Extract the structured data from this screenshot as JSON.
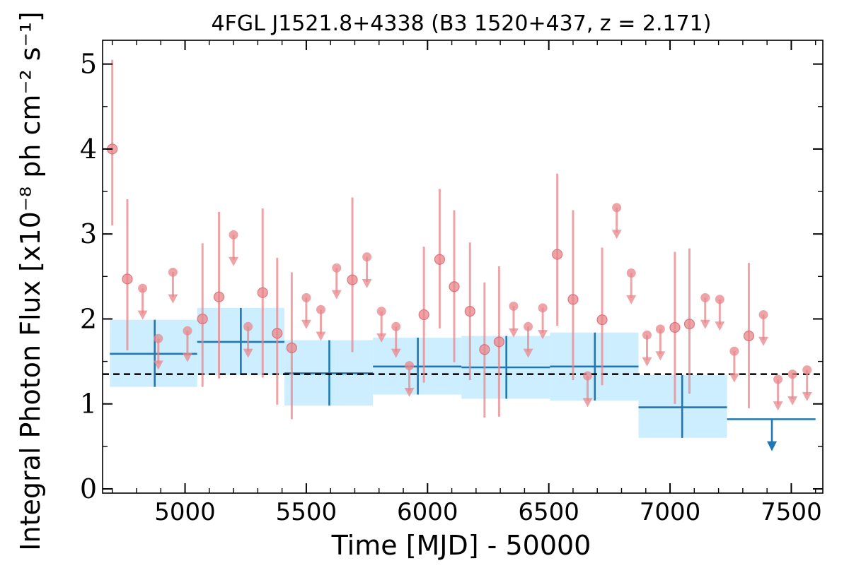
{
  "chart_data": {
    "type": "scatter",
    "title": "4FGL J1521.8+4338 (B3 1520+437, z = 2.171)",
    "xlabel": "Time [MJD] - 50000",
    "ylabel": "Integral Photon Flux [x10⁻⁸ ph cm⁻² s⁻¹]",
    "xlim": [
      4660,
      7630
    ],
    "ylim": [
      -0.05,
      5.28
    ],
    "xticks": [
      5000,
      5500,
      6000,
      6500,
      7000,
      7500
    ],
    "yticks": [
      0,
      1,
      2,
      3,
      4,
      5
    ],
    "grid": false,
    "legend": "none",
    "average_flux": 1.35,
    "colors": {
      "monthly": "#e8868a",
      "yearly": "#1f77b4",
      "band": "#cdeeff",
      "average_line": "#000000"
    },
    "series": [
      {
        "bin": "monthly",
        "detections": [
          {
            "x": 4700,
            "y": 4.0,
            "lo": 3.1,
            "hi": 5.05
          },
          {
            "x": 4762,
            "y": 2.47,
            "lo": 1.63,
            "hi": 3.41
          },
          {
            "x": 5072,
            "y": 2.0,
            "lo": 1.2,
            "hi": 2.89
          },
          {
            "x": 5140,
            "y": 2.26,
            "lo": 1.3,
            "hi": 3.26
          },
          {
            "x": 5320,
            "y": 2.31,
            "lo": 1.31,
            "hi": 3.3
          },
          {
            "x": 5380,
            "y": 1.83,
            "lo": 0.99,
            "hi": 2.72
          },
          {
            "x": 5440,
            "y": 1.66,
            "lo": 0.82,
            "hi": 2.55
          },
          {
            "x": 5690,
            "y": 2.46,
            "lo": 1.61,
            "hi": 3.43
          },
          {
            "x": 5985,
            "y": 2.05,
            "lo": 1.25,
            "hi": 2.85
          },
          {
            "x": 6050,
            "y": 2.7,
            "lo": 1.89,
            "hi": 3.53
          },
          {
            "x": 6110,
            "y": 2.38,
            "lo": 1.49,
            "hi": 3.28
          },
          {
            "x": 6175,
            "y": 2.09,
            "lo": 1.28,
            "hi": 2.9
          },
          {
            "x": 6235,
            "y": 1.64,
            "lo": 0.84,
            "hi": 2.43
          },
          {
            "x": 6295,
            "y": 1.73,
            "lo": 0.85,
            "hi": 2.62
          },
          {
            "x": 6535,
            "y": 2.76,
            "lo": 1.92,
            "hi": 3.71
          },
          {
            "x": 6600,
            "y": 2.23,
            "lo": 1.28,
            "hi": 3.28
          },
          {
            "x": 6720,
            "y": 1.99,
            "lo": 1.22,
            "hi": 2.84
          },
          {
            "x": 7020,
            "y": 1.9,
            "lo": 1.0,
            "hi": 2.79
          },
          {
            "x": 7080,
            "y": 1.94,
            "lo": 1.12,
            "hi": 2.83
          },
          {
            "x": 7325,
            "y": 1.8,
            "lo": 0.95,
            "hi": 2.66
          }
        ],
        "upper_limits": [
          {
            "x": 4825,
            "y": 2.36
          },
          {
            "x": 4890,
            "y": 1.77
          },
          {
            "x": 4950,
            "y": 2.55
          },
          {
            "x": 5010,
            "y": 1.86
          },
          {
            "x": 5200,
            "y": 2.99
          },
          {
            "x": 5260,
            "y": 1.91
          },
          {
            "x": 5500,
            "y": 2.25
          },
          {
            "x": 5560,
            "y": 2.11
          },
          {
            "x": 5625,
            "y": 2.6
          },
          {
            "x": 5750,
            "y": 2.73
          },
          {
            "x": 5810,
            "y": 2.09
          },
          {
            "x": 5870,
            "y": 1.91
          },
          {
            "x": 5925,
            "y": 1.45
          },
          {
            "x": 6355,
            "y": 2.15
          },
          {
            "x": 6415,
            "y": 1.91
          },
          {
            "x": 6475,
            "y": 2.13
          },
          {
            "x": 6660,
            "y": 1.33
          },
          {
            "x": 6780,
            "y": 3.31
          },
          {
            "x": 6840,
            "y": 2.54
          },
          {
            "x": 6905,
            "y": 1.81
          },
          {
            "x": 6960,
            "y": 1.88
          },
          {
            "x": 7145,
            "y": 2.25
          },
          {
            "x": 7205,
            "y": 2.23
          },
          {
            "x": 7265,
            "y": 1.62
          },
          {
            "x": 7385,
            "y": 2.05
          },
          {
            "x": 7445,
            "y": 1.29
          },
          {
            "x": 7505,
            "y": 1.35
          },
          {
            "x": 7565,
            "y": 1.4
          }
        ]
      },
      {
        "bin": "yearly",
        "detections": [
          {
            "x_start": 4690,
            "x_end": 5050,
            "x": 4875,
            "y": 1.59,
            "lo": 1.2,
            "hi": 1.99
          },
          {
            "x_start": 5050,
            "x_end": 5410,
            "x": 5230,
            "y": 1.73,
            "lo": 1.34,
            "hi": 2.13
          },
          {
            "x_start": 5410,
            "x_end": 5775,
            "x": 5595,
            "y": 1.36,
            "lo": 0.98,
            "hi": 1.75
          },
          {
            "x_start": 5775,
            "x_end": 6140,
            "x": 5960,
            "y": 1.44,
            "lo": 1.11,
            "hi": 1.78
          },
          {
            "x_start": 6140,
            "x_end": 6505,
            "x": 6325,
            "y": 1.43,
            "lo": 1.06,
            "hi": 1.8
          },
          {
            "x_start": 6505,
            "x_end": 6870,
            "x": 6690,
            "y": 1.44,
            "lo": 1.04,
            "hi": 1.84
          },
          {
            "x_start": 6870,
            "x_end": 7235,
            "x": 7050,
            "y": 0.96,
            "lo": 0.6,
            "hi": 1.34
          }
        ],
        "upper_limits": [
          {
            "x_start": 7235,
            "x_end": 7600,
            "x": 7420,
            "y": 0.82
          }
        ]
      }
    ]
  }
}
